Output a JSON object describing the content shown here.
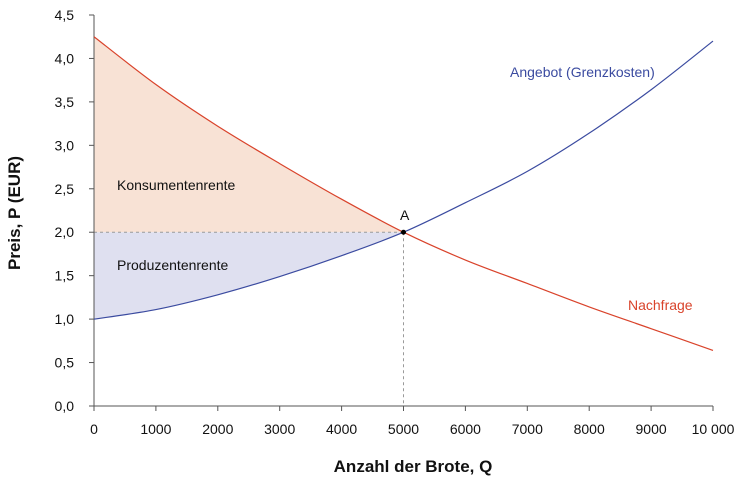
{
  "chart_data": {
    "type": "line",
    "xlabel": "Anzahl der Brote, Q",
    "ylabel": "Preis, P (EUR)",
    "xlim": [
      0,
      10000
    ],
    "ylim": [
      0,
      4.5
    ],
    "x_ticks": [
      0,
      1000,
      2000,
      3000,
      4000,
      5000,
      6000,
      7000,
      8000,
      9000,
      10000
    ],
    "x_tick_labels": [
      "0",
      "1000",
      "2000",
      "3000",
      "4000",
      "5000",
      "6000",
      "7000",
      "8000",
      "9000",
      "10 000"
    ],
    "y_ticks": [
      0,
      0.5,
      1,
      1.5,
      2,
      2.5,
      3,
      3.5,
      4,
      4.5
    ],
    "y_tick_labels": [
      "0,0",
      "0,5",
      "1,0",
      "1,5",
      "2,0",
      "2,5",
      "3,0",
      "3,5",
      "4,0",
      "4,5"
    ],
    "grid": false,
    "series": [
      {
        "name": "Angebot (Grenzkosten)",
        "color": "#3b4ba0",
        "x": [
          0,
          1000,
          2000,
          3000,
          4000,
          5000,
          6000,
          7000,
          8000,
          9000,
          10000
        ],
        "y": [
          1.0,
          1.11,
          1.28,
          1.49,
          1.73,
          2.0,
          2.34,
          2.7,
          3.14,
          3.64,
          4.2
        ]
      },
      {
        "name": "Nachfrage",
        "color": "#d9432b",
        "x": [
          0,
          1000,
          2000,
          3000,
          4000,
          5000,
          6000,
          7000,
          8000,
          9000,
          10000
        ],
        "y": [
          4.25,
          3.7,
          3.22,
          2.79,
          2.38,
          2.0,
          1.68,
          1.41,
          1.14,
          0.89,
          0.64
        ]
      }
    ],
    "areas": [
      {
        "label": "Konsumentenrente",
        "color": "#f8e2d5",
        "lower": 2.0,
        "upper_series": "Nachfrage",
        "x_range": [
          0,
          5000
        ]
      },
      {
        "label": "Produzentenrente",
        "color": "#dfe0f0",
        "upper": 2.0,
        "lower_series": "Angebot (Grenzkosten)",
        "x_range": [
          0,
          5000
        ]
      }
    ],
    "equilibrium": {
      "label": "A",
      "x": 5000,
      "y": 2.0
    },
    "text_labels": {
      "supply": "Angebot (Grenzkosten)",
      "demand": "Nachfrage",
      "consumer_surplus": "Konsumentenrente",
      "producer_surplus": "Produzentenrente",
      "point": "A"
    }
  }
}
